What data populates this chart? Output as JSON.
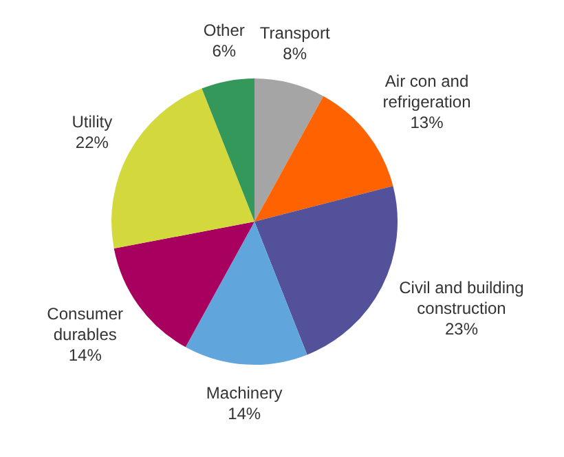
{
  "chart_data": {
    "type": "pie",
    "categories": [
      "Transport",
      "Air con and refrigeration",
      "Civil and building construction",
      "Machinery",
      "Consumer durables",
      "Utility",
      "Other"
    ],
    "values": [
      8,
      13,
      23,
      14,
      14,
      22,
      6
    ],
    "colors": [
      "#a5a5a5",
      "#ff6200",
      "#525199",
      "#60a6dd",
      "#a8005f",
      "#d3d93c",
      "#34985a"
    ],
    "value_labels": [
      "8%",
      "13%",
      "23%",
      "14%",
      "14%",
      "22%",
      "6%"
    ],
    "legend": false
  }
}
